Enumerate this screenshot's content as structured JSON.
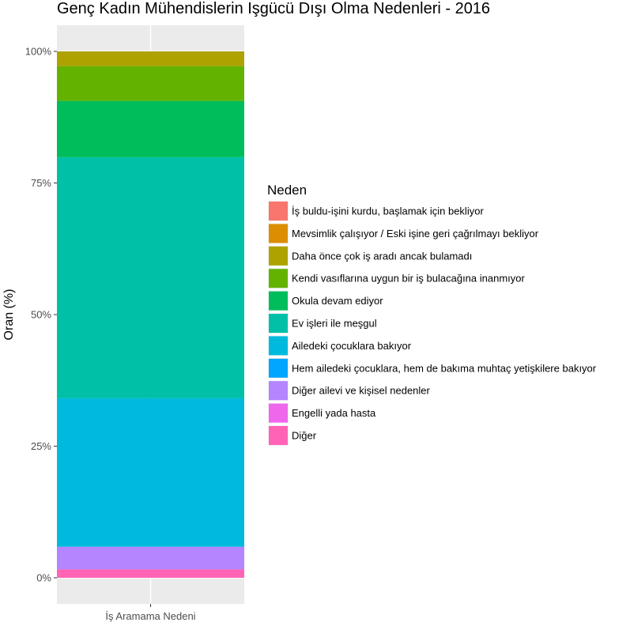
{
  "chart_data": {
    "type": "bar",
    "stacked": true,
    "title": "Genç Kadın Mühendislerin Işgücü Dışı Olma Nedenleri - 2016",
    "xlabel": "",
    "ylabel": "Oran (%)",
    "categories": [
      "İş Aramama Nedeni"
    ],
    "ylim": [
      0,
      100
    ],
    "yticks": [
      "0%",
      "25%",
      "50%",
      "75%",
      "100%"
    ],
    "grid": true,
    "legend": {
      "title": "Neden",
      "position": "right"
    },
    "series": [
      {
        "name": "İş buldu-işini kurdu, başlamak için bekliyor",
        "color": "#F8766D",
        "values": [
          0.0
        ]
      },
      {
        "name": "Mevsimlik çalışıyor / Eski işine geri çağrılmayı bekliyor",
        "color": "#DB8E00",
        "values": [
          0.0
        ]
      },
      {
        "name": "Daha önce çok iş aradı ancak bulamadı",
        "color": "#AEA200",
        "values": [
          2.8
        ]
      },
      {
        "name": "Kendi vasıflarına uygun bir iş bulacağına inanmıyor",
        "color": "#64B200",
        "values": [
          6.6
        ]
      },
      {
        "name": "Okula devam ediyor",
        "color": "#00BD5C",
        "values": [
          10.7
        ]
      },
      {
        "name": "Ev işleri ile meşgul",
        "color": "#00C1A7",
        "values": [
          45.8
        ]
      },
      {
        "name": "Ailedeki çocuklara bakıyor",
        "color": "#00BADE",
        "values": [
          28.2
        ]
      },
      {
        "name": "Hem ailedeki çocuklara, hem de bakıma muhtaç yetişkilere bakıyor",
        "color": "#00A6FF",
        "values": [
          0.0
        ]
      },
      {
        "name": "Diğer ailevi ve kişisel nedenler",
        "color": "#B385FF",
        "values": [
          4.3
        ]
      },
      {
        "name": "Engelli yada hasta",
        "color": "#EF67EB",
        "values": [
          0.0
        ]
      },
      {
        "name": "Diğer",
        "color": "#FF63B6",
        "values": [
          1.6
        ]
      }
    ]
  }
}
